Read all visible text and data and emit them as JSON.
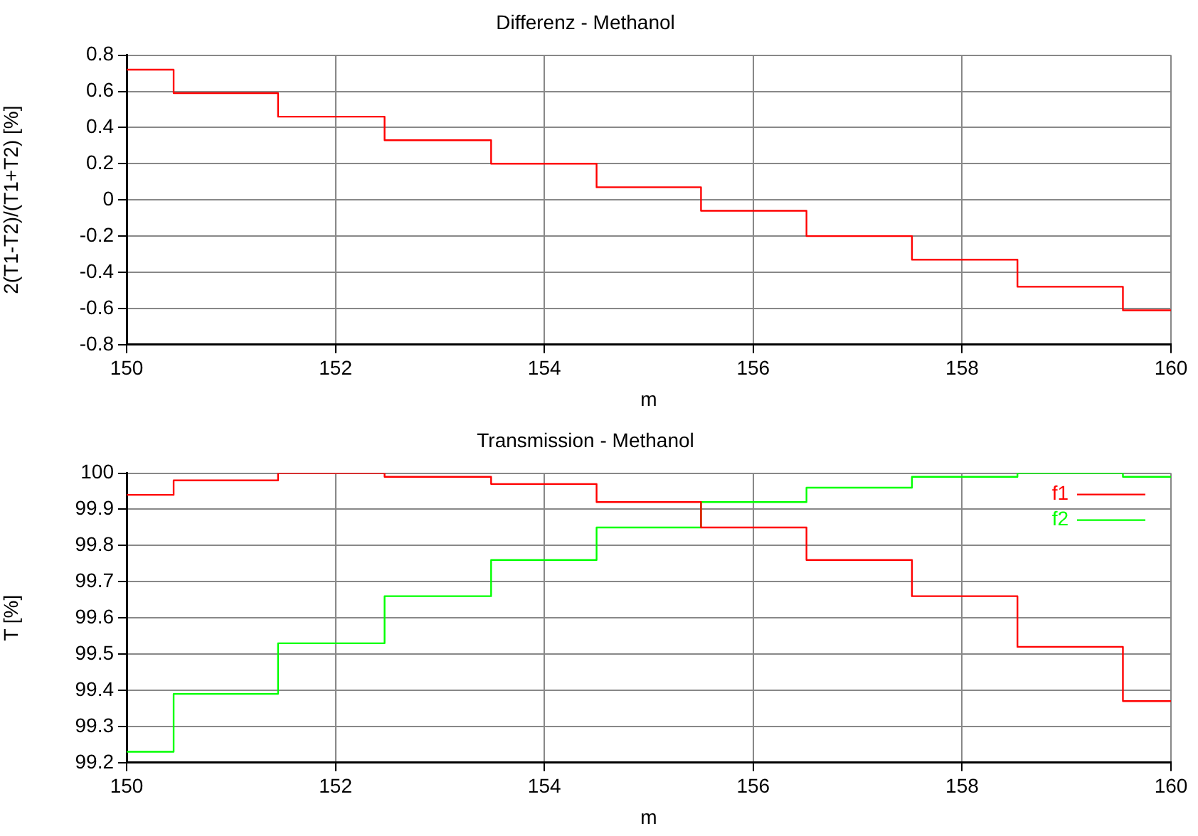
{
  "chart_data": [
    {
      "type": "step",
      "title": "Differenz - Methanol",
      "xlabel": "m",
      "ylabel": "2(T1-T2)/(T1+T2) [%]",
      "x": [
        150,
        150.45,
        151.45,
        152.47,
        153.49,
        154.5,
        155.5,
        156.51,
        157.52,
        158.53,
        159.54,
        160
      ],
      "values": [
        0.72,
        0.59,
        0.46,
        0.33,
        0.2,
        0.07,
        -0.06,
        -0.2,
        -0.33,
        -0.48,
        -0.61,
        -0.61
      ],
      "color": "#ff0000",
      "xlim": [
        150,
        160
      ],
      "xticks": [
        150,
        152,
        154,
        156,
        158,
        160
      ],
      "ylim": [
        -0.8,
        0.8
      ],
      "yticks": [
        -0.8,
        -0.6,
        -0.4,
        -0.2,
        0,
        0.2,
        0.4,
        0.6,
        0.8
      ],
      "grid": true
    },
    {
      "type": "step",
      "title": "Transmission - Methanol",
      "xlabel": "m",
      "ylabel": "T [%]",
      "x": [
        150,
        150.45,
        151.45,
        152.47,
        153.49,
        154.5,
        155.5,
        156.51,
        157.52,
        158.53,
        159.54,
        160
      ],
      "series": [
        {
          "name": "f1",
          "color": "#ff0000",
          "values": [
            99.94,
            99.98,
            100,
            99.99,
            99.97,
            99.92,
            99.85,
            99.76,
            99.66,
            99.52,
            99.37,
            99.37
          ]
        },
        {
          "name": "f2",
          "color": "#00ff00",
          "values": [
            99.23,
            99.39,
            99.53,
            99.66,
            99.76,
            99.85,
            99.92,
            99.96,
            99.99,
            100,
            99.99,
            99.99
          ]
        }
      ],
      "xlim": [
        150,
        160
      ],
      "xticks": [
        150,
        152,
        154,
        156,
        158,
        160
      ],
      "ylim": [
        99.2,
        100
      ],
      "yticks": [
        99.2,
        99.3,
        99.4,
        99.5,
        99.6,
        99.7,
        99.8,
        99.9,
        100
      ],
      "grid": true,
      "legend": "top right"
    }
  ]
}
